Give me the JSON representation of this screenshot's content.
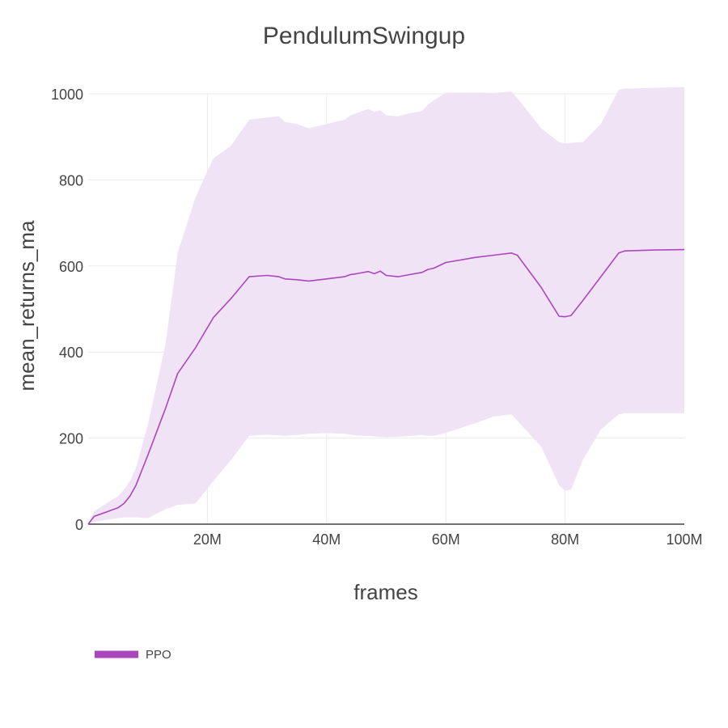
{
  "chart_data": {
    "type": "line",
    "title": "PendulumSwingup",
    "xlabel": "frames",
    "ylabel": "mean_returns_ma",
    "xlim": [
      0,
      100000000
    ],
    "ylim": [
      0,
      1000
    ],
    "x_ticks": [
      {
        "value": 20000000,
        "label": "20M"
      },
      {
        "value": 40000000,
        "label": "40M"
      },
      {
        "value": 60000000,
        "label": "60M"
      },
      {
        "value": 80000000,
        "label": "80M"
      },
      {
        "value": 100000000,
        "label": "100M"
      }
    ],
    "y_ticks": [
      {
        "value": 0,
        "label": "0"
      },
      {
        "value": 200,
        "label": "200"
      },
      {
        "value": 400,
        "label": "400"
      },
      {
        "value": 600,
        "label": "600"
      },
      {
        "value": 800,
        "label": "800"
      },
      {
        "value": 1000,
        "label": "1000"
      }
    ],
    "grid": true,
    "legend_position": "bottom-left",
    "series": [
      {
        "name": "PPO",
        "color": "#ab47bc",
        "band_color": "#f1e3f6",
        "x": [
          0,
          1000000,
          3000000,
          5000000,
          6000000,
          7000000,
          8000000,
          10000000,
          13000000,
          15000000,
          18000000,
          21000000,
          24000000,
          27000000,
          30000000,
          32000000,
          33000000,
          35000000,
          37000000,
          40000000,
          43000000,
          44000000,
          45000000,
          47000000,
          48000000,
          49000000,
          50000000,
          52000000,
          54000000,
          56000000,
          57000000,
          58000000,
          60000000,
          65000000,
          68000000,
          71000000,
          72000000,
          76000000,
          79000000,
          80000000,
          81000000,
          83000000,
          86000000,
          89000000,
          90000000,
          95000000,
          100000000
        ],
        "y": [
          0,
          18,
          28,
          38,
          48,
          65,
          90,
          160,
          270,
          350,
          410,
          480,
          525,
          575,
          578,
          575,
          570,
          568,
          565,
          570,
          575,
          580,
          582,
          587,
          582,
          588,
          578,
          575,
          580,
          585,
          592,
          595,
          608,
          620,
          625,
          630,
          625,
          550,
          483,
          482,
          485,
          520,
          575,
          630,
          635,
          637,
          638
        ],
        "y_upper": [
          0,
          30,
          48,
          65,
          80,
          100,
          130,
          230,
          420,
          630,
          760,
          850,
          880,
          940,
          945,
          948,
          935,
          930,
          920,
          930,
          940,
          950,
          955,
          965,
          958,
          962,
          950,
          948,
          955,
          960,
          975,
          985,
          1003,
          1003,
          1002,
          1005,
          990,
          920,
          888,
          885,
          886,
          888,
          930,
          1010,
          1012,
          1014,
          1016
        ],
        "y_lower": [
          0,
          5,
          10,
          14,
          16,
          16,
          16,
          14,
          35,
          45,
          48,
          100,
          150,
          205,
          208,
          206,
          205,
          207,
          210,
          212,
          210,
          208,
          206,
          205,
          204,
          203,
          202,
          203,
          205,
          207,
          205,
          205,
          212,
          235,
          250,
          255,
          240,
          180,
          90,
          78,
          80,
          150,
          220,
          255,
          258,
          258,
          258
        ]
      }
    ]
  }
}
